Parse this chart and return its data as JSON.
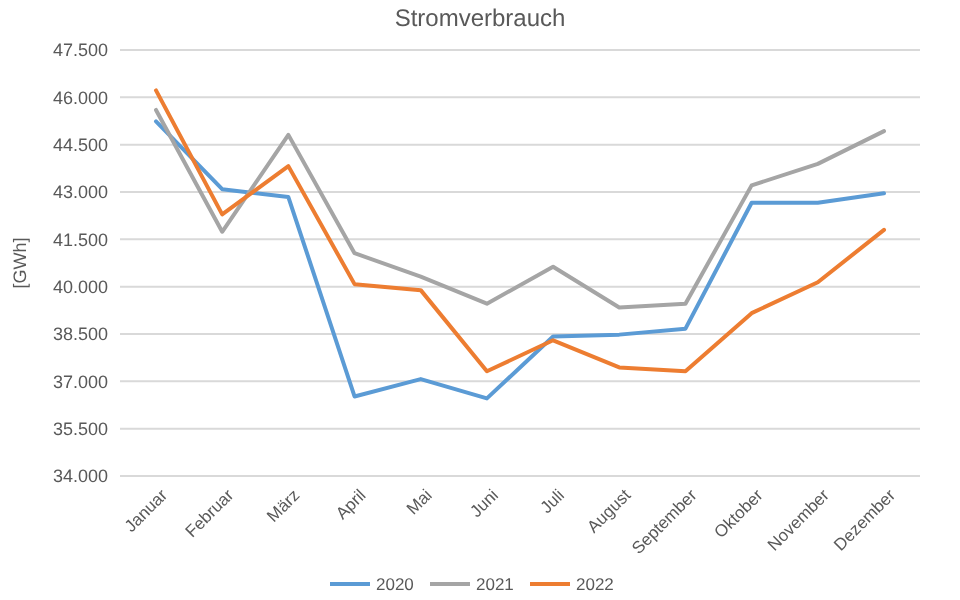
{
  "chart_data": {
    "type": "line",
    "title": "Stromverbrauch",
    "ylabel": "[GWh]",
    "categories": [
      "Januar",
      "Februar",
      "März",
      "April",
      "Mai",
      "Juni",
      "Juli",
      "August",
      "September",
      "Oktober",
      "November",
      "Dezember"
    ],
    "series": [
      {
        "name": "2020",
        "color": "#5b9bd5",
        "values": [
          45240,
          43090,
          42840,
          36520,
          37070,
          36460,
          38420,
          38480,
          38670,
          42660,
          42660,
          42960
        ]
      },
      {
        "name": "2021",
        "color": "#a5a5a5",
        "values": [
          45600,
          41740,
          44810,
          41060,
          40320,
          39460,
          40630,
          39340,
          39460,
          43210,
          43890,
          44930
        ]
      },
      {
        "name": "2022",
        "color": "#ed7d31",
        "values": [
          46220,
          42290,
          43820,
          40080,
          39890,
          37320,
          38300,
          37440,
          37320,
          39160,
          40140,
          41800
        ]
      }
    ],
    "ylim": [
      34000,
      47500
    ],
    "yticks": [
      {
        "value": 34000,
        "label": "34.000"
      },
      {
        "value": 35500,
        "label": "35.500"
      },
      {
        "value": 37000,
        "label": "37.000"
      },
      {
        "value": 38500,
        "label": "38.500"
      },
      {
        "value": 40000,
        "label": "40.000"
      },
      {
        "value": 41500,
        "label": "41.500"
      },
      {
        "value": 43000,
        "label": "43.000"
      },
      {
        "value": 44500,
        "label": "44.500"
      },
      {
        "value": 46000,
        "label": "46.000"
      },
      {
        "value": 47500,
        "label": "47.500"
      }
    ],
    "grid": "y",
    "legend": "bottom",
    "marker": "none",
    "line_style": "solid"
  }
}
